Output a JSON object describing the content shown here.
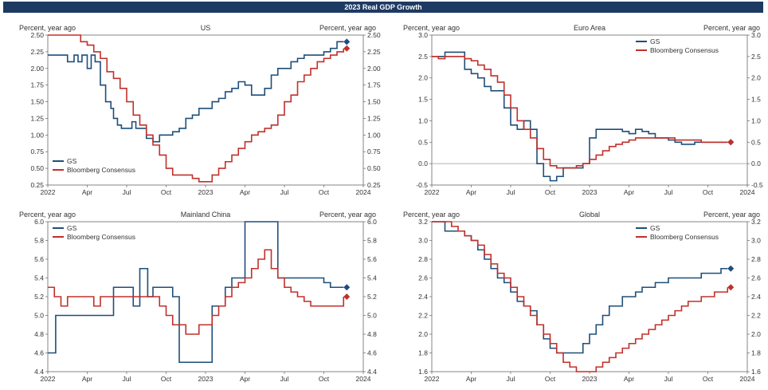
{
  "banner": "2023 Real GDP Growth",
  "colors": {
    "gs": "#1f4e79",
    "consensus": "#c0302b",
    "banner": "#1e3a63",
    "zero_line": "#999999"
  },
  "x_ticks": [
    "2022",
    "Apr",
    "Jul",
    "Oct",
    "2023",
    "Apr",
    "Jul",
    "Oct",
    "2024"
  ],
  "chart_data": [
    {
      "type": "line",
      "title": "US",
      "ylabel_left": "Percent, year ago",
      "ylabel_right": "Percent, year ago",
      "x_range": [
        0,
        24
      ],
      "ylim": [
        0.25,
        2.5
      ],
      "y_ticks": [
        "0.25",
        "0.50",
        "0.75",
        "1.00",
        "1.25",
        "1.50",
        "1.75",
        "2.00",
        "2.25",
        "2.50"
      ],
      "legend": "bottom-left",
      "series": [
        {
          "name": "GS",
          "color": "#1f4e79",
          "x": [
            0,
            1,
            1.5,
            2,
            2.3,
            2.6,
            3,
            3.3,
            3.6,
            4,
            4.4,
            4.8,
            5,
            5.3,
            5.6,
            6,
            6.4,
            6.7,
            7,
            7.5,
            8,
            8.5,
            9,
            9.5,
            10,
            10.5,
            11,
            11.5,
            12,
            12.5,
            13,
            13.5,
            14,
            14.5,
            15,
            15.5,
            16,
            16.5,
            17,
            17.5,
            18,
            18.5,
            19,
            19.5,
            20,
            20.5,
            21,
            21.5,
            22,
            22.5
          ],
          "y": [
            2.2,
            2.2,
            2.1,
            2.2,
            2.1,
            2.2,
            2.0,
            2.2,
            2.1,
            1.75,
            1.5,
            1.4,
            1.25,
            1.15,
            1.1,
            1.1,
            1.2,
            1.1,
            1.1,
            0.95,
            0.9,
            1.0,
            1.0,
            1.05,
            1.1,
            1.25,
            1.3,
            1.4,
            1.4,
            1.5,
            1.55,
            1.65,
            1.7,
            1.8,
            1.75,
            1.6,
            1.6,
            1.7,
            1.9,
            2.0,
            2.0,
            2.1,
            2.15,
            2.2,
            2.2,
            2.2,
            2.25,
            2.3,
            2.4,
            2.4
          ]
        },
        {
          "name": "Bloomberg Consensus",
          "color": "#c0302b",
          "x": [
            0,
            1,
            2,
            2.5,
            3,
            3.5,
            4,
            4.5,
            5,
            5.5,
            6,
            6.5,
            7,
            7.5,
            8,
            8.5,
            9,
            9.5,
            10,
            10.5,
            11,
            11.5,
            12,
            12.5,
            13,
            13.5,
            14,
            14.5,
            15,
            15.5,
            16,
            16.5,
            17,
            17.5,
            18,
            18.5,
            19,
            19.5,
            20,
            20.5,
            21,
            21.5,
            22,
            22.5
          ],
          "y": [
            2.5,
            2.5,
            2.5,
            2.4,
            2.35,
            2.25,
            2.15,
            1.95,
            1.85,
            1.7,
            1.5,
            1.3,
            1.15,
            1.0,
            0.85,
            0.7,
            0.5,
            0.4,
            0.4,
            0.4,
            0.35,
            0.3,
            0.3,
            0.4,
            0.5,
            0.6,
            0.7,
            0.8,
            0.9,
            1.0,
            1.05,
            1.1,
            1.15,
            1.3,
            1.5,
            1.6,
            1.8,
            1.9,
            2.0,
            2.1,
            2.15,
            2.2,
            2.25,
            2.3
          ]
        }
      ],
      "endpoints": {
        "GS": 2.4,
        "Bloomberg Consensus": 2.3
      }
    },
    {
      "type": "line",
      "title": "Euro Area",
      "ylabel_left": "Percent, year ago",
      "ylabel_right": "Percent, year ago",
      "x_range": [
        0,
        24
      ],
      "ylim": [
        -0.5,
        3.0
      ],
      "y_ticks": [
        "-0.5",
        "0.0",
        "0.5",
        "1.0",
        "1.5",
        "2.0",
        "2.5",
        "3.0"
      ],
      "zero_line": true,
      "legend": "top-right",
      "series": [
        {
          "name": "GS",
          "color": "#1f4e79",
          "x": [
            0,
            0.5,
            1,
            1.5,
            2,
            2.5,
            3,
            3.5,
            4,
            4.5,
            5,
            5.5,
            6,
            6.5,
            7,
            7.5,
            8,
            8.5,
            9,
            9.5,
            10,
            10.5,
            11,
            11.5,
            12,
            12.5,
            13,
            13.5,
            14,
            14.5,
            15,
            15.5,
            16,
            16.5,
            17,
            17.5,
            18,
            18.5,
            19,
            19.5,
            20,
            20.5,
            21,
            21.5,
            22,
            22.5
          ],
          "y": [
            2.5,
            2.5,
            2.6,
            2.6,
            2.6,
            2.2,
            2.1,
            2.0,
            1.8,
            1.7,
            1.7,
            1.3,
            0.9,
            0.8,
            1.0,
            0.8,
            0.0,
            -0.3,
            -0.4,
            -0.3,
            -0.1,
            -0.1,
            -0.1,
            0.0,
            0.6,
            0.8,
            0.8,
            0.8,
            0.8,
            0.75,
            0.7,
            0.8,
            0.75,
            0.7,
            0.6,
            0.6,
            0.55,
            0.5,
            0.45,
            0.45,
            0.5,
            0.5,
            0.5,
            0.5,
            0.5,
            0.5
          ]
        },
        {
          "name": "Bloomberg Consensus",
          "color": "#c0302b",
          "x": [
            0,
            0.5,
            1,
            1.5,
            2,
            2.5,
            3,
            3.5,
            4,
            4.5,
            5,
            5.5,
            6,
            6.5,
            7,
            7.5,
            8,
            8.5,
            9,
            9.5,
            10,
            10.5,
            11,
            11.5,
            12,
            12.5,
            13,
            13.5,
            14,
            14.5,
            15,
            15.5,
            16,
            16.5,
            17,
            17.5,
            18,
            18.5,
            19,
            19.5,
            20,
            20.5,
            21,
            21.5,
            22,
            22.5
          ],
          "y": [
            2.5,
            2.45,
            2.5,
            2.5,
            2.5,
            2.45,
            2.4,
            2.3,
            2.2,
            2.05,
            1.9,
            1.6,
            1.3,
            1.0,
            0.8,
            0.6,
            0.35,
            0.1,
            -0.05,
            -0.1,
            -0.1,
            -0.1,
            -0.05,
            0.0,
            0.1,
            0.2,
            0.3,
            0.4,
            0.45,
            0.5,
            0.55,
            0.6,
            0.6,
            0.6,
            0.6,
            0.6,
            0.6,
            0.55,
            0.55,
            0.55,
            0.55,
            0.5,
            0.5,
            0.5,
            0.5,
            0.5
          ]
        }
      ],
      "endpoints": {
        "GS": 0.5,
        "Bloomberg Consensus": 0.5
      }
    },
    {
      "type": "line",
      "title": "Mainland China",
      "ylabel_left": "Percent, year ago",
      "ylabel_right": "Percent, year ago",
      "x_range": [
        0,
        24
      ],
      "ylim": [
        4.4,
        6.0
      ],
      "y_ticks": [
        "4.4",
        "4.6",
        "4.8",
        "5.0",
        "5.2",
        "5.4",
        "5.6",
        "5.8",
        "6.0"
      ],
      "legend": "top-left",
      "series": [
        {
          "name": "GS",
          "color": "#1f4e79",
          "x": [
            0,
            0.3,
            0.6,
            1,
            2,
            3,
            4,
            5,
            5.5,
            6,
            6.5,
            7,
            7.3,
            7.6,
            8,
            8.5,
            9,
            9.5,
            10,
            10.5,
            11,
            11.5,
            12,
            12.5,
            13,
            13.5,
            14,
            14.5,
            15,
            15.5,
            16,
            16.5,
            17,
            17.5,
            18,
            18.5,
            19,
            19.5,
            20,
            20.5,
            21,
            21.5,
            22,
            22.5
          ],
          "y": [
            4.6,
            4.6,
            5.0,
            5.0,
            5.0,
            5.0,
            5.0,
            5.3,
            5.3,
            5.3,
            5.1,
            5.5,
            5.5,
            5.2,
            5.3,
            5.3,
            5.3,
            5.2,
            4.5,
            4.5,
            4.5,
            4.5,
            4.5,
            5.1,
            5.1,
            5.3,
            5.4,
            5.4,
            6.0,
            6.0,
            6.0,
            6.0,
            6.0,
            5.4,
            5.4,
            5.4,
            5.4,
            5.4,
            5.4,
            5.4,
            5.35,
            5.3,
            5.3,
            5.3
          ]
        },
        {
          "name": "Bloomberg Consensus",
          "color": "#c0302b",
          "x": [
            0,
            0.5,
            1,
            1.5,
            2,
            2.5,
            3,
            3.5,
            4,
            4.5,
            5,
            5.5,
            6,
            6.5,
            7,
            7.5,
            8,
            8.5,
            9,
            9.5,
            10,
            10.5,
            11,
            11.5,
            12,
            12.5,
            13,
            13.5,
            14,
            14.5,
            15,
            15.5,
            16,
            16.5,
            17,
            17.5,
            18,
            18.5,
            19,
            19.5,
            20,
            20.5,
            21,
            21.5,
            22,
            22.5
          ],
          "y": [
            5.3,
            5.2,
            5.1,
            5.2,
            5.2,
            5.2,
            5.2,
            5.1,
            5.2,
            5.2,
            5.2,
            5.2,
            5.2,
            5.2,
            5.2,
            5.2,
            5.2,
            5.1,
            5.0,
            4.9,
            4.9,
            4.8,
            4.8,
            4.9,
            4.9,
            5.0,
            5.1,
            5.2,
            5.3,
            5.35,
            5.4,
            5.5,
            5.6,
            5.7,
            5.5,
            5.4,
            5.3,
            5.25,
            5.2,
            5.15,
            5.1,
            5.1,
            5.1,
            5.1,
            5.1,
            5.2
          ]
        }
      ],
      "endpoints": {
        "GS": 5.3,
        "Bloomberg Consensus": 5.2
      }
    },
    {
      "type": "line",
      "title": "Global",
      "ylabel_left": "Percent, year ago",
      "ylabel_right": "Percent, year ago",
      "x_range": [
        0,
        24
      ],
      "ylim": [
        1.6,
        3.2
      ],
      "y_ticks": [
        "1.6",
        "1.8",
        "2.0",
        "2.2",
        "2.4",
        "2.6",
        "2.8",
        "3.0",
        "3.2"
      ],
      "legend": "top-right",
      "series": [
        {
          "name": "GS",
          "color": "#1f4e79",
          "x": [
            0,
            0.5,
            1,
            1.5,
            2,
            2.5,
            3,
            3.5,
            4,
            4.5,
            5,
            5.5,
            6,
            6.5,
            7,
            7.5,
            8,
            8.5,
            9,
            9.5,
            10,
            10.5,
            11,
            11.5,
            12,
            12.5,
            13,
            13.5,
            14,
            14.5,
            15,
            15.5,
            16,
            16.5,
            17,
            17.5,
            18,
            18.5,
            19,
            19.5,
            20,
            20.5,
            21,
            21.5,
            22,
            22.5
          ],
          "y": [
            3.2,
            3.2,
            3.1,
            3.1,
            3.1,
            3.05,
            3.0,
            2.9,
            2.8,
            2.7,
            2.6,
            2.55,
            2.45,
            2.35,
            2.3,
            2.25,
            2.1,
            1.95,
            1.85,
            1.8,
            1.8,
            1.8,
            1.8,
            1.9,
            2.0,
            2.1,
            2.2,
            2.3,
            2.3,
            2.4,
            2.4,
            2.45,
            2.5,
            2.5,
            2.55,
            2.55,
            2.6,
            2.6,
            2.6,
            2.6,
            2.6,
            2.65,
            2.65,
            2.65,
            2.7,
            2.7
          ]
        },
        {
          "name": "Bloomberg Consensus",
          "color": "#c0302b",
          "x": [
            0,
            0.5,
            1,
            1.5,
            2,
            2.5,
            3,
            3.5,
            4,
            4.5,
            5,
            5.5,
            6,
            6.5,
            7,
            7.5,
            8,
            8.5,
            9,
            9.5,
            10,
            10.5,
            11,
            11.5,
            12,
            12.5,
            13,
            13.5,
            14,
            14.5,
            15,
            15.5,
            16,
            16.5,
            17,
            17.5,
            18,
            18.5,
            19,
            19.5,
            20,
            20.5,
            21,
            21.5,
            22,
            22.5
          ],
          "y": [
            3.2,
            3.2,
            3.2,
            3.15,
            3.1,
            3.05,
            3.0,
            2.95,
            2.85,
            2.75,
            2.65,
            2.6,
            2.5,
            2.4,
            2.3,
            2.2,
            2.1,
            2.0,
            1.9,
            1.8,
            1.7,
            1.65,
            1.6,
            1.6,
            1.6,
            1.65,
            1.7,
            1.75,
            1.8,
            1.85,
            1.9,
            1.95,
            2.0,
            2.05,
            2.1,
            2.15,
            2.2,
            2.25,
            2.3,
            2.35,
            2.35,
            2.4,
            2.4,
            2.45,
            2.45,
            2.5
          ]
        }
      ],
      "endpoints": {
        "GS": 2.7,
        "Bloomberg Consensus": 2.5
      }
    }
  ]
}
